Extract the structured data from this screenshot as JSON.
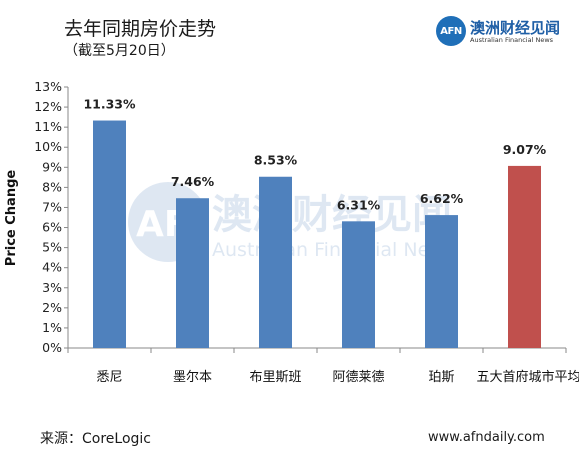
{
  "header": {
    "title": "去年同期房价走势",
    "subtitle": "（截至5月20日）"
  },
  "logo": {
    "mark": "AFN",
    "name_cn": "澳洲财经见闻",
    "name_en": "Australian Financial News"
  },
  "watermark": {
    "mark": "AFN",
    "name_cn": "澳洲财经见闻",
    "name_en": "Australian Financial News"
  },
  "footer": {
    "source": "来源：CoreLogic",
    "website": "www.afndaily.com"
  },
  "chart_data": {
    "type": "bar",
    "ylabel": "Price Change",
    "ylim": [
      0,
      13
    ],
    "yticks": [
      0,
      1,
      2,
      3,
      4,
      5,
      6,
      7,
      8,
      9,
      10,
      11,
      12,
      13
    ],
    "ytick_labels": [
      "0%",
      "1%",
      "2%",
      "3%",
      "4%",
      "5%",
      "6%",
      "7%",
      "8%",
      "9%",
      "10%",
      "11%",
      "12%",
      "13%"
    ],
    "categories": [
      "悉尼",
      "墨尔本",
      "布里斯班",
      "阿德莱德",
      "珀斯",
      "五大首府城市平均"
    ],
    "values": [
      11.33,
      7.46,
      8.53,
      6.31,
      6.62,
      9.07
    ],
    "value_labels": [
      "11.33%",
      "7.46%",
      "8.53%",
      "6.31%",
      "6.62%",
      "9.07%"
    ],
    "colors": [
      "#4f81bd",
      "#4f81bd",
      "#4f81bd",
      "#4f81bd",
      "#4f81bd",
      "#c0504d"
    ],
    "grid": false,
    "legend": "none"
  }
}
